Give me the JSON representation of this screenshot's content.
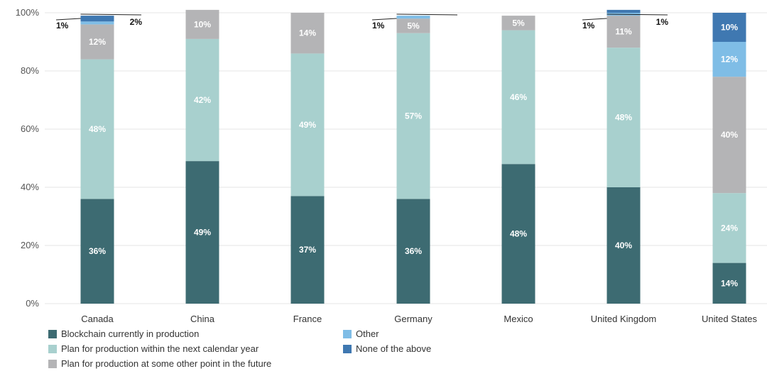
{
  "chart_data": {
    "type": "bar",
    "stacked": true,
    "categories": [
      "Canada",
      "China",
      "France",
      "Germany",
      "Mexico",
      "United Kingdom",
      "United States"
    ],
    "series": [
      {
        "name": "Blockchain currently in production",
        "color": "#3d6b72",
        "values": [
          36,
          49,
          37,
          36,
          48,
          40,
          14
        ]
      },
      {
        "name": "Plan for production within the next calendar year",
        "color": "#a8d0ce",
        "values": [
          48,
          42,
          49,
          57,
          46,
          48,
          24
        ]
      },
      {
        "name": "Plan for production at some other point in the future",
        "color": "#b4b4b6",
        "values": [
          12,
          10,
          14,
          5,
          5,
          11,
          40
        ]
      },
      {
        "name": "Other",
        "color": "#7fbde6",
        "values": [
          1,
          0,
          0,
          1,
          0,
          1,
          12
        ]
      },
      {
        "name": "None of the above",
        "color": "#3f78b1",
        "values": [
          2,
          0,
          0,
          0,
          0,
          1,
          10
        ]
      }
    ],
    "segment_labels": [
      [
        "36%",
        "49%",
        "37%",
        "36%",
        "48%",
        "40%",
        "14%"
      ],
      [
        "48%",
        "42%",
        "49%",
        "57%",
        "46%",
        "48%",
        "24%"
      ],
      [
        "12%",
        "10%",
        "14%",
        "5%",
        "5%",
        "11%",
        "40%"
      ],
      [
        "",
        "",
        "",
        "",
        "",
        "",
        "12%"
      ],
      [
        "",
        "",
        "",
        "",
        "",
        "",
        "10%"
      ]
    ],
    "callouts": [
      {
        "category": "Canada",
        "left_text": "1%",
        "right_text": "2%"
      },
      {
        "category": "Germany",
        "left_text": "1%",
        "right_text": ""
      },
      {
        "category": "United Kingdom",
        "left_text": "1%",
        "right_text": "1%"
      }
    ],
    "yticks": [
      "0%",
      "20%",
      "40%",
      "60%",
      "80%",
      "100%"
    ],
    "ylim": [
      0,
      100
    ],
    "grid": true,
    "legend_position": "bottom-left"
  },
  "legend": {
    "items": [
      {
        "label": "Blockchain currently in production",
        "color": "#3d6b72"
      },
      {
        "label": "Other",
        "color": "#7fbde6"
      },
      {
        "label": "Plan for production within the next calendar year",
        "color": "#a8d0ce"
      },
      {
        "label": "None of the above",
        "color": "#3f78b1"
      },
      {
        "label": "Plan for production at some other point in the future",
        "color": "#b4b4b6"
      }
    ]
  }
}
